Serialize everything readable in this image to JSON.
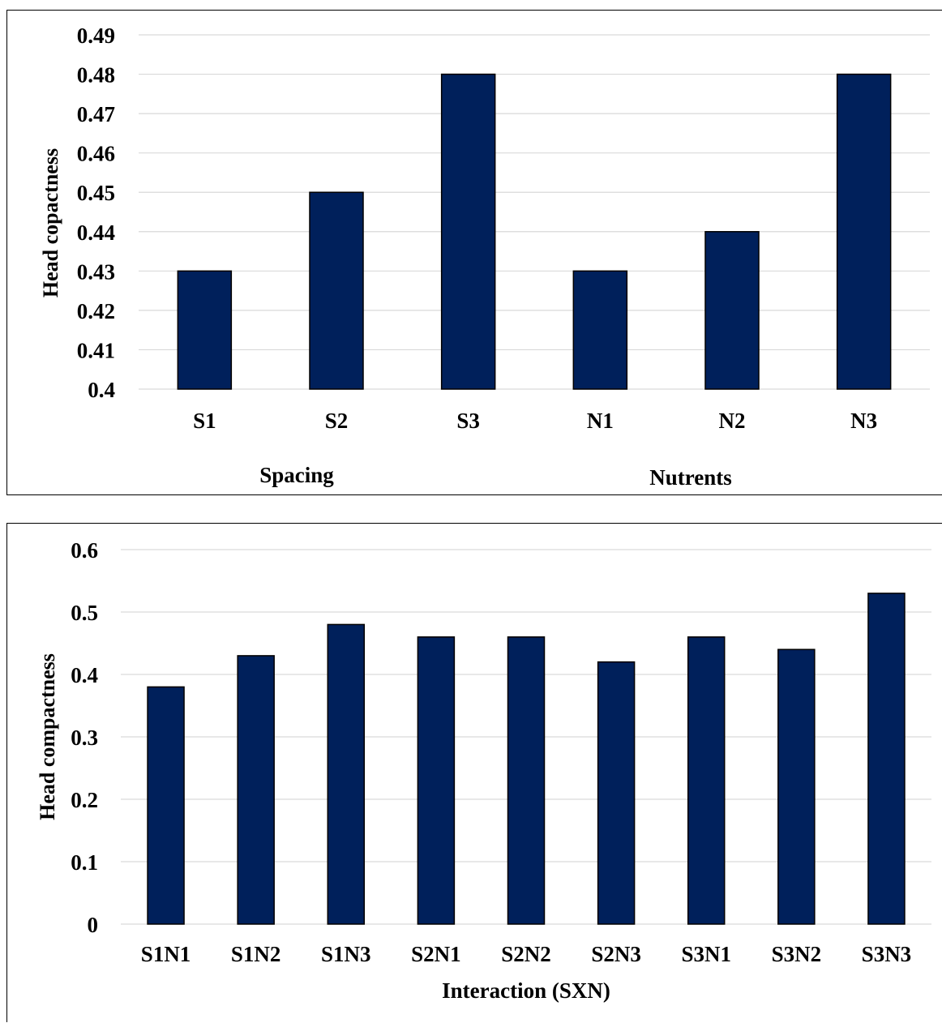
{
  "colors": {
    "bar": "#00205b",
    "grid": "#d9d9d9",
    "border": "#000000"
  },
  "chart_data": [
    {
      "type": "bar",
      "categories": [
        "S1",
        "S2",
        "S3",
        "N1",
        "N2",
        "N3"
      ],
      "values": [
        0.43,
        0.45,
        0.48,
        0.43,
        0.44,
        0.48
      ],
      "ylabel": "Head copactness",
      "group_labels": [
        "Spacing",
        "Nutrents"
      ],
      "ylim": [
        0.4,
        0.49
      ],
      "yticks": [
        "0.4",
        "0.41",
        "0.42",
        "0.43",
        "0.44",
        "0.45",
        "0.46",
        "0.47",
        "0.48",
        "0.49"
      ],
      "grid": true
    },
    {
      "type": "bar",
      "categories": [
        "S1N1",
        "S1N2",
        "S1N3",
        "S2N1",
        "S2N2",
        "S2N3",
        "S3N1",
        "S3N2",
        "S3N3"
      ],
      "values": [
        0.38,
        0.43,
        0.48,
        0.46,
        0.46,
        0.42,
        0.46,
        0.44,
        0.53
      ],
      "ylabel": "Head compactness",
      "xlabel": "Interaction (SXN)",
      "ylim": [
        0,
        0.6
      ],
      "yticks": [
        "0",
        "0.1",
        "0.2",
        "0.3",
        "0.4",
        "0.5",
        "0.6"
      ],
      "grid": true
    }
  ]
}
